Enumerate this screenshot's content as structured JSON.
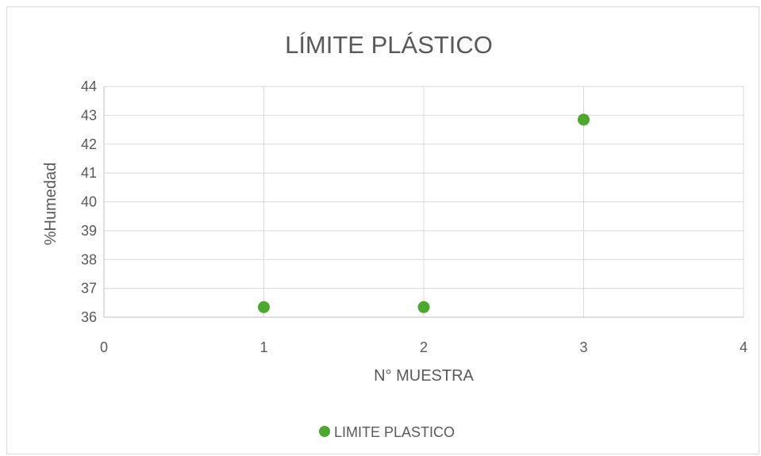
{
  "chart_data": {
    "type": "scatter",
    "title": "LÍMITE PLÁSTICO",
    "xlabel": "N° MUESTRA",
    "ylabel": "%Humedad",
    "xlim": [
      0,
      4
    ],
    "ylim": [
      36,
      44
    ],
    "xticks": [
      0,
      1,
      2,
      3,
      4
    ],
    "yticks": [
      36,
      37,
      38,
      39,
      40,
      41,
      42,
      43,
      44
    ],
    "grid": true,
    "legend_position": "bottom",
    "series": [
      {
        "name": "LIMITE PLASTICO",
        "color": "#4ea72e",
        "points": [
          {
            "x": 1,
            "y": 36.35
          },
          {
            "x": 2,
            "y": 36.35
          },
          {
            "x": 3,
            "y": 42.85
          }
        ]
      }
    ]
  }
}
